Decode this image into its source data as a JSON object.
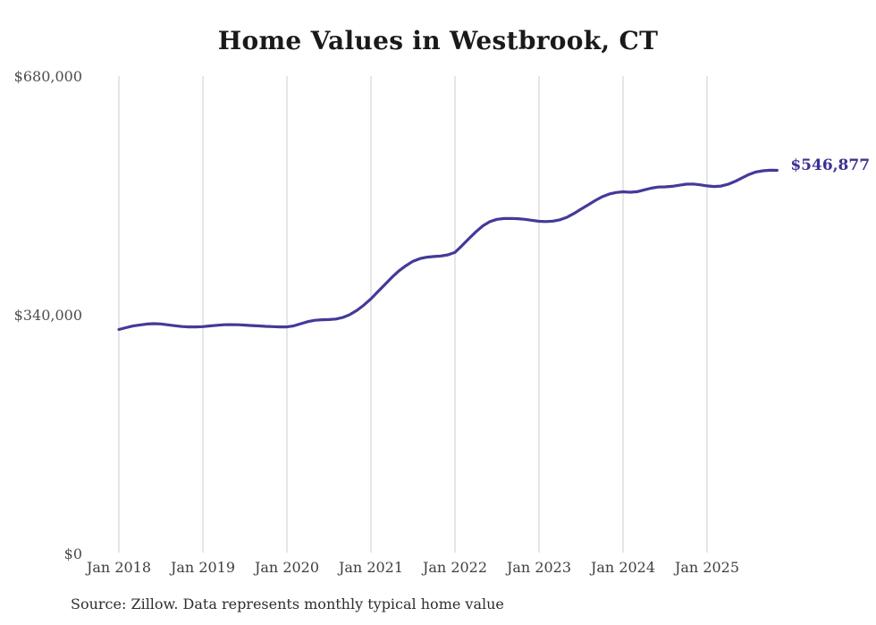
{
  "title": "Home Values in Westbrook, CT",
  "source_note": "Source: Zillow. Data represents monthly typical home value",
  "colors": {
    "background": "#ffffff",
    "line": "#433a99",
    "end_label": "#3b3191",
    "grid": "#cccccc",
    "title": "#1a1a1a",
    "y_axis_label": "#4d4d4d",
    "x_axis_label": "#3f3f3f",
    "source": "#2e2e2e"
  },
  "y_axis": {
    "tick_labels": [
      {
        "label": "$680,000",
        "value": 680000
      },
      {
        "label": "$340,000",
        "value": 340000
      },
      {
        "label": "$0",
        "value": 0
      }
    ]
  },
  "x_axis": {
    "tick_labels": [
      "Jan 2018",
      "Jan 2019",
      "Jan 2020",
      "Jan 2021",
      "Jan 2022",
      "Jan 2023",
      "Jan 2024",
      "Jan 2025"
    ]
  },
  "chart_data": {
    "type": "line",
    "title": "Home Values in Westbrook, CT",
    "xlabel": "",
    "ylabel": "",
    "ylim": [
      0,
      680000
    ],
    "yticks": [
      0,
      340000,
      680000
    ],
    "xtick_labels": [
      "Jan 2018",
      "Jan 2019",
      "Jan 2020",
      "Jan 2021",
      "Jan 2022",
      "Jan 2023",
      "Jan 2024",
      "Jan 2025"
    ],
    "grid": "vertical-only",
    "legend": false,
    "series": [
      {
        "name": "Monthly typical home value",
        "start_month": "Jan 2018",
        "frequency": "monthly",
        "values": [
          320300,
          322800,
          325200,
          326800,
          328000,
          328500,
          328100,
          326900,
          325600,
          324500,
          323900,
          324000,
          324300,
          325300,
          326300,
          327000,
          327200,
          327000,
          326500,
          325900,
          325300,
          324700,
          324300,
          324000,
          323900,
          325500,
          328500,
          331500,
          333400,
          334100,
          334400,
          335200,
          337500,
          341500,
          347500,
          355200,
          364000,
          374200,
          384500,
          394600,
          403800,
          411200,
          417400,
          421300,
          423300,
          424200,
          425000,
          426600,
          430100,
          439600,
          449800,
          459500,
          468000,
          474000,
          477200,
          478300,
          478400,
          478000,
          477100,
          475700,
          474300,
          474000,
          474600,
          476500,
          480100,
          485600,
          491600,
          497700,
          503700,
          509200,
          513100,
          515400,
          516400,
          515700,
          516500,
          519000,
          521500,
          523100,
          523400,
          524100,
          525600,
          527200,
          527400,
          526300,
          524800,
          523900,
          524500,
          527100,
          531200,
          536200,
          541100,
          544600,
          546300,
          547100,
          546877
        ],
        "end_value": 546877,
        "end_label": "$546,877"
      }
    ]
  }
}
